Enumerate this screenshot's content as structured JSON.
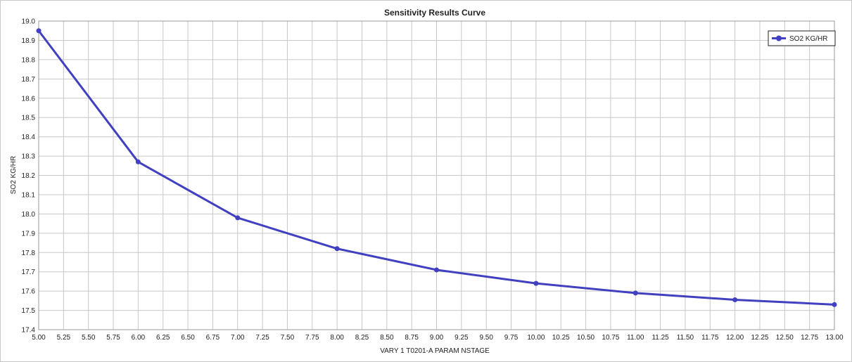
{
  "chart_data": {
    "type": "line",
    "title": "Sensitivity Results Curve",
    "xlabel": "VARY   1 T0201-A PARAM NSTAGE",
    "ylabel": "SO2 KG/HR",
    "xlim": [
      5.0,
      13.0
    ],
    "ylim": [
      17.4,
      19.0
    ],
    "x_ticks": [
      "5.00",
      "5.25",
      "5.50",
      "5.75",
      "6.00",
      "6.25",
      "6.50",
      "6.75",
      "7.00",
      "7.25",
      "7.50",
      "7.75",
      "8.00",
      "8.25",
      "8.50",
      "8.75",
      "9.00",
      "9.25",
      "9.50",
      "9.75",
      "10.00",
      "10.25",
      "10.50",
      "10.75",
      "11.00",
      "11.25",
      "11.50",
      "11.75",
      "12.00",
      "12.25",
      "12.50",
      "12.75",
      "13.00"
    ],
    "y_ticks": [
      "17.4",
      "17.5",
      "17.6",
      "17.7",
      "17.8",
      "17.9",
      "18.0",
      "18.1",
      "18.2",
      "18.3",
      "18.4",
      "18.5",
      "18.6",
      "18.7",
      "18.8",
      "18.9",
      "19.0"
    ],
    "grid": true,
    "legend_position": "top-right",
    "x": [
      5,
      6,
      7,
      8,
      9,
      10,
      11,
      12,
      13
    ],
    "series": [
      {
        "name": "SO2 KG/HR",
        "color": "#4040c0",
        "values": [
          18.95,
          18.27,
          17.98,
          17.82,
          17.71,
          17.64,
          17.59,
          17.555,
          17.53
        ]
      }
    ]
  }
}
